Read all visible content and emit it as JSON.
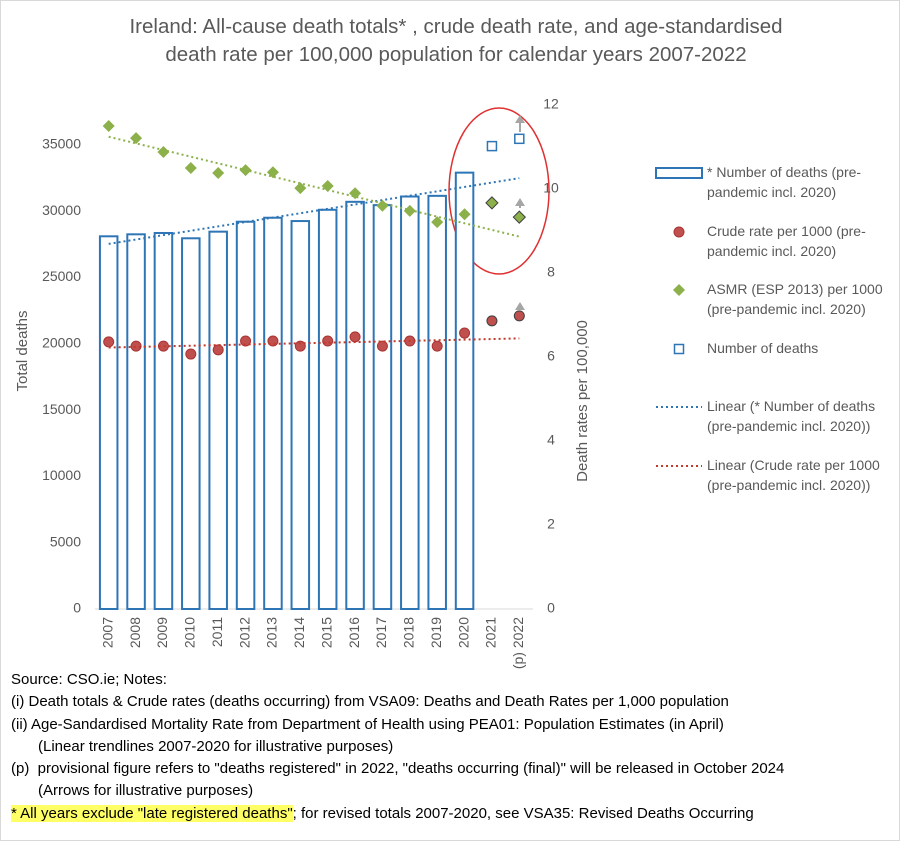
{
  "chart_data": {
    "type": "combo",
    "title": "Ireland: All-cause death totals* , crude death rate, and age-standardised death rate per 100,000 population for calendar years 2007-2022",
    "categories": [
      "2007",
      "2008",
      "2009",
      "2010",
      "2011",
      "2012",
      "2013",
      "2014",
      "2015",
      "2016",
      "2017",
      "2018",
      "2019",
      "2020",
      "2021",
      "(p) 2022"
    ],
    "ylabel": "Total deaths",
    "y2label": "Death rates per 100,000",
    "ylim": [
      0,
      38000
    ],
    "yticks": [
      0,
      5000,
      10000,
      15000,
      20000,
      25000,
      30000,
      35000
    ],
    "y2lim": [
      0,
      12
    ],
    "y2ticks": [
      0,
      2,
      4,
      6,
      8,
      10,
      12
    ],
    "series": [
      {
        "name": "* Number of deaths (pre-pandemic incl. 2020)",
        "kind": "bar",
        "color": "#2e75b6",
        "trendline": true,
        "trendline_name": "Linear (* Number of deaths (pre-pandemic incl. 2020))",
        "values": [
          28100,
          28250,
          28350,
          27950,
          28450,
          29200,
          29500,
          29250,
          30100,
          30700,
          30450,
          31100,
          31150,
          32900,
          null,
          null
        ]
      },
      {
        "name": "Crude rate per 1000 (pre-pandemic incl. 2020)",
        "kind": "circle",
        "color": "#c0504d",
        "axis": "y2",
        "trendline": true,
        "trendline_color": "#c0392b",
        "trendline_name": "Linear (Crude rate per 1000 (pre-pandemic incl. 2020))",
        "values": [
          6.36,
          6.26,
          6.26,
          6.07,
          6.17,
          6.38,
          6.38,
          6.26,
          6.38,
          6.48,
          6.26,
          6.38,
          6.26,
          6.57,
          6.86,
          6.98
        ]
      },
      {
        "name": "ASMR (ESP 2013) per 1000 (pre-pandemic incl. 2020)",
        "kind": "diamond",
        "color": "#8cb04a",
        "axis": "y2",
        "trendline": true,
        "values": [
          11.5,
          11.21,
          10.88,
          10.5,
          10.38,
          10.45,
          10.4,
          10.02,
          10.07,
          9.9,
          9.6,
          9.48,
          9.21,
          9.4,
          9.67,
          9.33
        ]
      },
      {
        "name": "Number of deaths",
        "kind": "square",
        "color": "#2e75b6",
        "values": [
          null,
          null,
          null,
          null,
          null,
          null,
          null,
          null,
          null,
          null,
          null,
          null,
          null,
          null,
          34900,
          35450
        ]
      }
    ],
    "notes": [
      {
        "text": "Source: CSO.ie; Notes:"
      },
      {
        "text": "(i) Death totals & Crude rates (deaths occurring) from VSA09: Deaths and Death Rates per 1,000 population"
      },
      {
        "text": "(ii) Age-Sandardised Mortality Rate from Department of Health using PEA01: Population Estimates (in April)"
      },
      {
        "text": "(Linear trendlines 2007-2020 for illustrative purposes)",
        "indent": true
      },
      {
        "text": "(p)  provisional figure refers to \"deaths registered\" in 2022, \"deaths occurring (final)\" will be released in October 2024"
      },
      {
        "text": "(Arrows for illustrative purposes)",
        "indent": true
      }
    ],
    "highlight_note": "* All years exclude \"late registered deaths\"",
    "highlight_note_rest": "; for revised totals 2007-2020, see VSA35: Revised Deaths Occurring"
  }
}
